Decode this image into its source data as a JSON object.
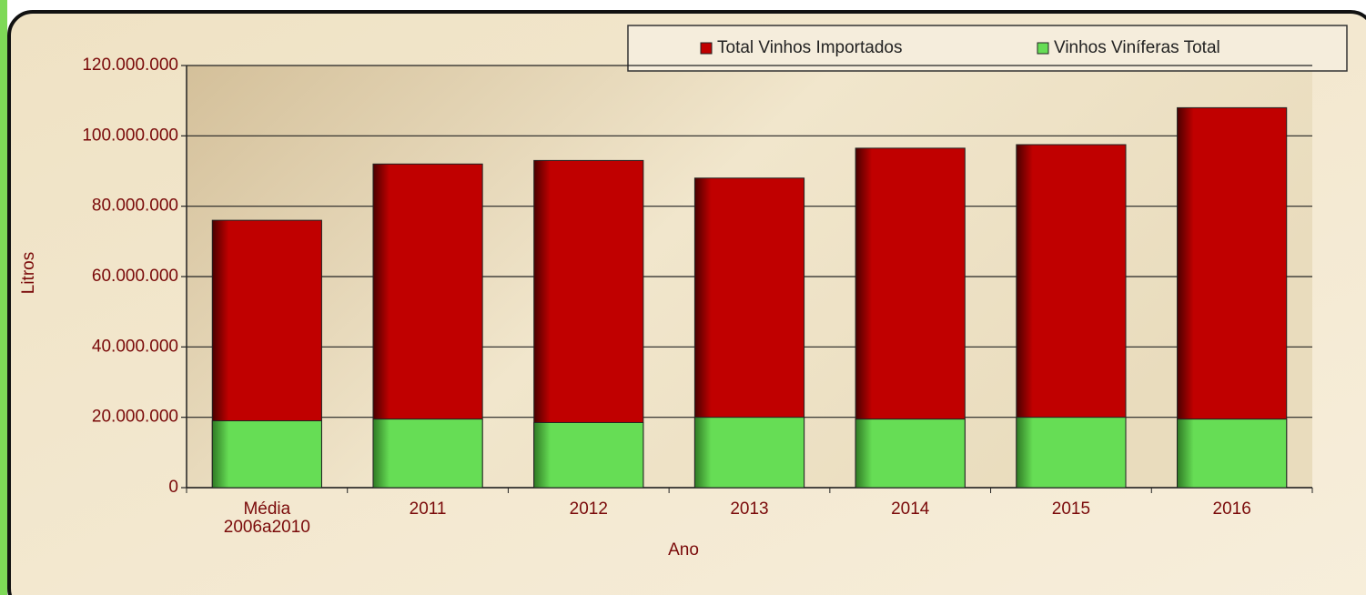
{
  "chart_data": {
    "type": "bar",
    "overlap": true,
    "categories": [
      "Média\n2006a2010",
      "2011",
      "2012",
      "2013",
      "2014",
      "2015",
      "2016"
    ],
    "series": [
      {
        "name": "Total Vinhos Importados",
        "color": "#c00000",
        "values": [
          76000000,
          92000000,
          93000000,
          88000000,
          96500000,
          97500000,
          108000000
        ]
      },
      {
        "name": "Vinhos Viníferas Total",
        "color": "#66dd55",
        "values": [
          19000000,
          19500000,
          18500000,
          20000000,
          19500000,
          20000000,
          19500000
        ]
      }
    ],
    "xlabel": "Ano",
    "ylabel": "Litros",
    "ylim": [
      0,
      120000000
    ],
    "yticks": [
      0,
      {
        "value": 20000000,
        "label": "20.000.000"
      },
      {
        "value": 40000000,
        "label": "40.000.000"
      },
      {
        "value": 60000000,
        "label": "60.000.000"
      },
      {
        "value": 80000000,
        "label": "80.000.000"
      },
      {
        "value": 100000000,
        "label": "100.000.000"
      },
      {
        "value": 120000000,
        "label": "120.000.000"
      }
    ],
    "grid": true,
    "legend": "top-right"
  }
}
